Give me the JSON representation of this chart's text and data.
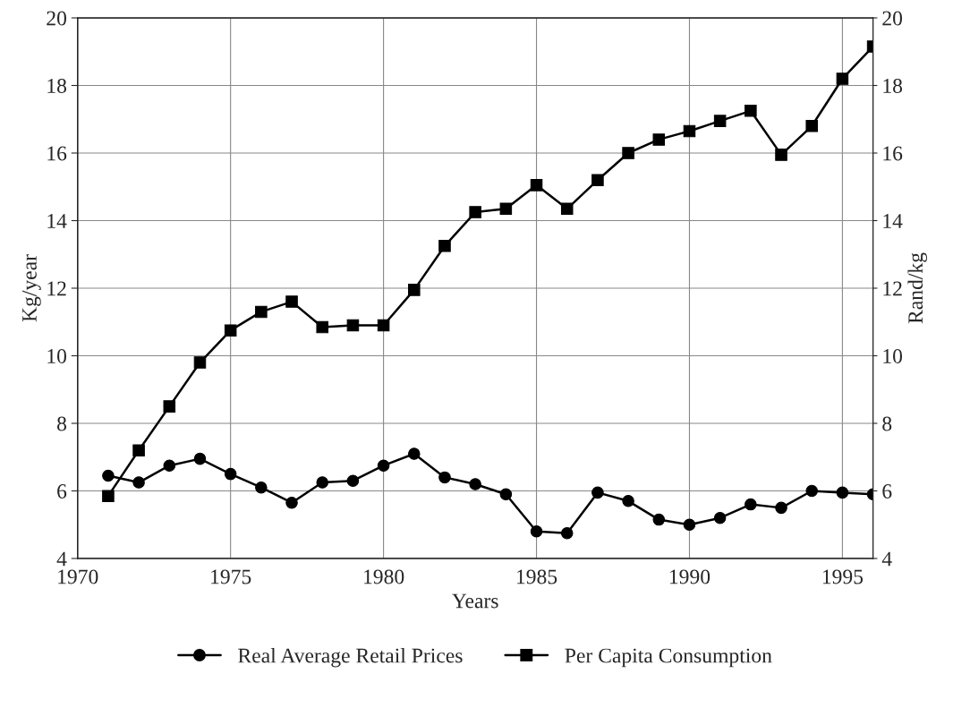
{
  "chart_data": {
    "type": "line",
    "xlabel": "Years",
    "ylabel": "Kg/year",
    "y2label": "Rand/kg",
    "x": [
      1971,
      1972,
      1973,
      1974,
      1975,
      1976,
      1977,
      1978,
      1979,
      1980,
      1981,
      1982,
      1983,
      1984,
      1985,
      1986,
      1987,
      1988,
      1989,
      1990,
      1991,
      1992,
      1993,
      1994,
      1995,
      1996
    ],
    "series": [
      {
        "name": "Real Average Retail Prices",
        "color": "#000000",
        "marker": "circle",
        "values": [
          6.45,
          6.25,
          6.75,
          6.95,
          6.5,
          6.1,
          5.65,
          6.25,
          6.3,
          6.75,
          7.1,
          6.4,
          6.2,
          5.9,
          4.8,
          4.75,
          5.95,
          5.7,
          5.15,
          5.0,
          5.2,
          5.6,
          5.5,
          6.0,
          5.95,
          5.9
        ]
      },
      {
        "name": "Per Capita Consumption",
        "color": "#000000",
        "marker": "square",
        "values": [
          5.85,
          7.2,
          8.5,
          9.8,
          10.75,
          11.3,
          11.6,
          10.85,
          10.9,
          10.9,
          11.95,
          13.25,
          14.25,
          14.35,
          15.05,
          14.35,
          15.2,
          16.0,
          16.4,
          16.65,
          16.95,
          17.25,
          15.95,
          16.8,
          18.2,
          19.15
        ]
      }
    ],
    "xlim": [
      1970,
      1996
    ],
    "xticks": [
      1970,
      1975,
      1980,
      1985,
      1990,
      1995
    ],
    "ylim": [
      4,
      20
    ],
    "yticks": [
      4,
      6,
      8,
      10,
      12,
      14,
      16,
      18,
      20
    ],
    "y2lim": [
      4,
      20
    ],
    "y2ticks": [
      4,
      6,
      8,
      10,
      12,
      14,
      16,
      18,
      20
    ],
    "grid": true,
    "legend": "bottom",
    "line_style": "solid"
  }
}
